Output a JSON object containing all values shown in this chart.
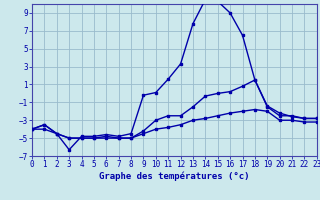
{
  "xlabel": "Graphe des températures (°c)",
  "bg_color": "#cce8ec",
  "line_color": "#0000aa",
  "grid_color": "#99bbcc",
  "xlim": [
    0,
    23
  ],
  "ylim": [
    -7,
    10
  ],
  "yticks": [
    -7,
    -5,
    -3,
    -1,
    1,
    3,
    5,
    7,
    9
  ],
  "xticks": [
    0,
    1,
    2,
    3,
    4,
    5,
    6,
    7,
    8,
    9,
    10,
    11,
    12,
    13,
    14,
    15,
    16,
    17,
    18,
    19,
    20,
    21,
    22,
    23
  ],
  "line1_x": [
    0,
    1,
    2,
    3,
    4,
    5,
    6,
    7,
    8,
    9,
    10,
    11,
    12,
    13,
    14,
    15,
    16,
    17,
    18,
    19,
    20,
    21,
    22,
    23
  ],
  "line1_y": [
    -4.0,
    -3.5,
    -4.5,
    -6.3,
    -4.8,
    -4.8,
    -4.6,
    -4.8,
    -4.5,
    -0.2,
    0.1,
    1.6,
    3.3,
    7.8,
    10.5,
    10.3,
    9.0,
    6.5,
    1.5,
    -1.4,
    -2.2,
    -2.6,
    -2.8,
    -2.8
  ],
  "line2_x": [
    0,
    1,
    2,
    3,
    4,
    5,
    6,
    7,
    8,
    9,
    10,
    11,
    12,
    13,
    14,
    15,
    16,
    17,
    18,
    19,
    20,
    21,
    22,
    23
  ],
  "line2_y": [
    -4.0,
    -3.5,
    -4.5,
    -5.0,
    -5.0,
    -5.0,
    -4.8,
    -5.0,
    -5.0,
    -4.2,
    -3.0,
    -2.5,
    -2.5,
    -1.5,
    -0.3,
    0.0,
    0.2,
    0.8,
    1.5,
    -1.5,
    -2.5,
    -2.5,
    -2.8,
    -2.8
  ],
  "line3_x": [
    0,
    1,
    2,
    3,
    4,
    5,
    6,
    7,
    8,
    9,
    10,
    11,
    12,
    13,
    14,
    15,
    16,
    17,
    18,
    19,
    20,
    21,
    22,
    23
  ],
  "line3_y": [
    -4.0,
    -4.0,
    -4.5,
    -5.0,
    -5.0,
    -5.0,
    -5.0,
    -5.0,
    -5.0,
    -4.5,
    -4.0,
    -3.8,
    -3.5,
    -3.0,
    -2.8,
    -2.5,
    -2.2,
    -2.0,
    -1.8,
    -2.0,
    -3.0,
    -3.0,
    -3.2,
    -3.2
  ]
}
